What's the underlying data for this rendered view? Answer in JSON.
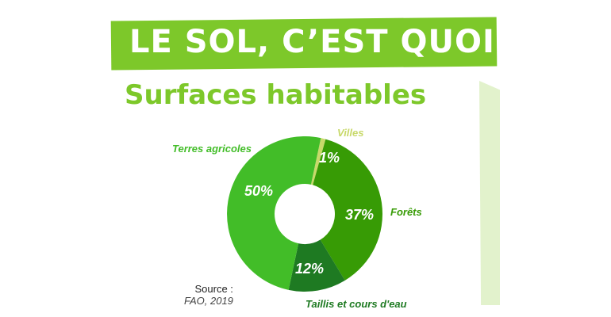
{
  "title": "LE SOL, C’EST QUOI ?",
  "subtitle": "Surfaces habitables",
  "source_label": "Source :",
  "source_value": "FAO, 2019",
  "chart_data": {
    "type": "pie",
    "donut": true,
    "start_angle_deg": 12,
    "slices": [
      {
        "label": "Villes",
        "value": 1,
        "display": "1%",
        "color": "#c8d96a"
      },
      {
        "label": "Forêts",
        "value": 37,
        "display": "37%",
        "color": "#379b05"
      },
      {
        "label": "Taillis et cours d'eau",
        "value": 12,
        "display": "12%",
        "color": "#1e7a22"
      },
      {
        "label": "Terres agricoles",
        "value": 50,
        "display": "50%",
        "color": "#42bd28"
      }
    ]
  }
}
